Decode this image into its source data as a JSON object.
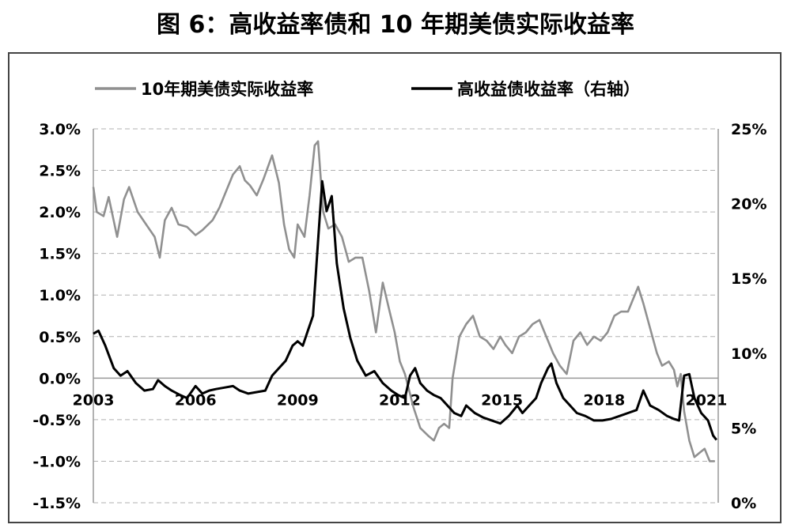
{
  "chart_data": {
    "type": "line",
    "title": "图 6：高收益率债和 10 年期美债实际收益率",
    "x_tick_labels": [
      "2003",
      "2006",
      "2009",
      "2012",
      "2015",
      "2018",
      "2021"
    ],
    "left_axis": {
      "ticks": [
        "3.0%",
        "2.5%",
        "2.0%",
        "1.5%",
        "1.0%",
        "0.5%",
        "0.0%",
        "-0.5%",
        "-1.0%",
        "-1.5%"
      ],
      "ylim": [
        -1.5,
        3.0
      ]
    },
    "right_axis": {
      "ticks": [
        "25%",
        "20%",
        "15%",
        "10%",
        "5%",
        "0%"
      ],
      "ylim": [
        0,
        25
      ]
    },
    "grid": "horizontal dashed",
    "legend_position": "top",
    "series": [
      {
        "name": "10年期美债实际收益率",
        "axis": "left",
        "color": "#909090",
        "points": [
          [
            2003.0,
            2.3
          ],
          [
            2003.1,
            2.0
          ],
          [
            2003.3,
            1.95
          ],
          [
            2003.45,
            2.18
          ],
          [
            2003.7,
            1.7
          ],
          [
            2003.9,
            2.15
          ],
          [
            2004.05,
            2.3
          ],
          [
            2004.3,
            2.0
          ],
          [
            2004.55,
            1.85
          ],
          [
            2004.8,
            1.7
          ],
          [
            2004.95,
            1.45
          ],
          [
            2005.1,
            1.9
          ],
          [
            2005.3,
            2.05
          ],
          [
            2005.5,
            1.85
          ],
          [
            2005.75,
            1.82
          ],
          [
            2006.0,
            1.72
          ],
          [
            2006.2,
            1.78
          ],
          [
            2006.5,
            1.9
          ],
          [
            2006.7,
            2.05
          ],
          [
            2006.9,
            2.25
          ],
          [
            2007.1,
            2.45
          ],
          [
            2007.3,
            2.55
          ],
          [
            2007.45,
            2.38
          ],
          [
            2007.6,
            2.32
          ],
          [
            2007.8,
            2.2
          ],
          [
            2008.0,
            2.4
          ],
          [
            2008.25,
            2.68
          ],
          [
            2008.45,
            2.35
          ],
          [
            2008.6,
            1.85
          ],
          [
            2008.75,
            1.55
          ],
          [
            2008.9,
            1.45
          ],
          [
            2009.0,
            1.85
          ],
          [
            2009.2,
            1.7
          ],
          [
            2009.35,
            2.2
          ],
          [
            2009.5,
            2.8
          ],
          [
            2009.6,
            2.85
          ],
          [
            2009.75,
            2.0
          ],
          [
            2009.9,
            1.8
          ],
          [
            2010.1,
            1.85
          ],
          [
            2010.3,
            1.7
          ],
          [
            2010.5,
            1.4
          ],
          [
            2010.7,
            1.45
          ],
          [
            2010.9,
            1.45
          ],
          [
            2011.1,
            1.05
          ],
          [
            2011.3,
            0.55
          ],
          [
            2011.5,
            1.15
          ],
          [
            2011.7,
            0.8
          ],
          [
            2011.85,
            0.55
          ],
          [
            2012.0,
            0.2
          ],
          [
            2012.15,
            0.05
          ],
          [
            2012.4,
            -0.35
          ],
          [
            2012.6,
            -0.6
          ],
          [
            2012.85,
            -0.7
          ],
          [
            2013.0,
            -0.75
          ],
          [
            2013.15,
            -0.6
          ],
          [
            2013.3,
            -0.55
          ],
          [
            2013.45,
            -0.6
          ],
          [
            2013.55,
            0.0
          ],
          [
            2013.75,
            0.5
          ],
          [
            2013.95,
            0.65
          ],
          [
            2014.15,
            0.75
          ],
          [
            2014.35,
            0.5
          ],
          [
            2014.55,
            0.45
          ],
          [
            2014.75,
            0.35
          ],
          [
            2014.95,
            0.5
          ],
          [
            2015.1,
            0.4
          ],
          [
            2015.3,
            0.3
          ],
          [
            2015.5,
            0.5
          ],
          [
            2015.7,
            0.55
          ],
          [
            2015.9,
            0.65
          ],
          [
            2016.1,
            0.7
          ],
          [
            2016.3,
            0.5
          ],
          [
            2016.5,
            0.3
          ],
          [
            2016.7,
            0.15
          ],
          [
            2016.9,
            0.05
          ],
          [
            2017.1,
            0.45
          ],
          [
            2017.3,
            0.55
          ],
          [
            2017.5,
            0.4
          ],
          [
            2017.7,
            0.5
          ],
          [
            2017.9,
            0.45
          ],
          [
            2018.1,
            0.55
          ],
          [
            2018.3,
            0.75
          ],
          [
            2018.5,
            0.8
          ],
          [
            2018.7,
            0.8
          ],
          [
            2018.9,
            1.0
          ],
          [
            2019.0,
            1.1
          ],
          [
            2019.15,
            0.9
          ],
          [
            2019.35,
            0.6
          ],
          [
            2019.55,
            0.3
          ],
          [
            2019.7,
            0.15
          ],
          [
            2019.9,
            0.2
          ],
          [
            2020.05,
            0.1
          ],
          [
            2020.15,
            -0.1
          ],
          [
            2020.25,
            0.05
          ],
          [
            2020.35,
            -0.4
          ],
          [
            2020.5,
            -0.75
          ],
          [
            2020.65,
            -0.95
          ],
          [
            2020.8,
            -0.9
          ],
          [
            2020.95,
            -0.85
          ],
          [
            2021.1,
            -1.0
          ],
          [
            2021.25,
            -1.0
          ]
        ]
      },
      {
        "name": "高收益债收益率（右轴）",
        "axis": "right",
        "color": "#000000",
        "points": [
          [
            2003.0,
            11.3
          ],
          [
            2003.15,
            11.5
          ],
          [
            2003.35,
            10.5
          ],
          [
            2003.6,
            9.0
          ],
          [
            2003.8,
            8.5
          ],
          [
            2004.0,
            8.8
          ],
          [
            2004.25,
            8.0
          ],
          [
            2004.5,
            7.5
          ],
          [
            2004.75,
            7.6
          ],
          [
            2004.9,
            8.2
          ],
          [
            2005.1,
            7.8
          ],
          [
            2005.3,
            7.5
          ],
          [
            2005.55,
            7.2
          ],
          [
            2005.75,
            7.0
          ],
          [
            2006.0,
            7.8
          ],
          [
            2006.2,
            7.3
          ],
          [
            2006.4,
            7.5
          ],
          [
            2006.6,
            7.6
          ],
          [
            2006.85,
            7.7
          ],
          [
            2007.1,
            7.8
          ],
          [
            2007.3,
            7.5
          ],
          [
            2007.55,
            7.3
          ],
          [
            2007.8,
            7.4
          ],
          [
            2008.05,
            7.5
          ],
          [
            2008.25,
            8.5
          ],
          [
            2008.45,
            9.0
          ],
          [
            2008.65,
            9.5
          ],
          [
            2008.85,
            10.5
          ],
          [
            2009.0,
            10.8
          ],
          [
            2009.15,
            10.5
          ],
          [
            2009.3,
            11.5
          ],
          [
            2009.45,
            12.5
          ],
          [
            2009.6,
            17.5
          ],
          [
            2009.72,
            21.5
          ],
          [
            2009.85,
            19.5
          ],
          [
            2010.0,
            20.5
          ],
          [
            2010.15,
            16.0
          ],
          [
            2010.35,
            13.0
          ],
          [
            2010.55,
            11.0
          ],
          [
            2010.75,
            9.5
          ],
          [
            2011.0,
            8.5
          ],
          [
            2011.25,
            8.8
          ],
          [
            2011.5,
            8.0
          ],
          [
            2011.75,
            7.5
          ],
          [
            2011.95,
            7.2
          ],
          [
            2012.15,
            7.0
          ],
          [
            2012.3,
            8.5
          ],
          [
            2012.45,
            9.0
          ],
          [
            2012.6,
            8.0
          ],
          [
            2012.8,
            7.5
          ],
          [
            2013.0,
            7.2
          ],
          [
            2013.2,
            7.0
          ],
          [
            2013.4,
            6.5
          ],
          [
            2013.6,
            6.0
          ],
          [
            2013.8,
            5.8
          ],
          [
            2013.95,
            6.5
          ],
          [
            2014.2,
            6.0
          ],
          [
            2014.45,
            5.7
          ],
          [
            2014.7,
            5.5
          ],
          [
            2014.95,
            5.3
          ],
          [
            2015.2,
            5.8
          ],
          [
            2015.45,
            6.5
          ],
          [
            2015.6,
            6.0
          ],
          [
            2015.8,
            6.5
          ],
          [
            2016.0,
            7.0
          ],
          [
            2016.15,
            8.0
          ],
          [
            2016.35,
            9.0
          ],
          [
            2016.45,
            9.3
          ],
          [
            2016.6,
            8.0
          ],
          [
            2016.8,
            7.0
          ],
          [
            2017.0,
            6.5
          ],
          [
            2017.2,
            6.0
          ],
          [
            2017.45,
            5.8
          ],
          [
            2017.7,
            5.5
          ],
          [
            2017.95,
            5.5
          ],
          [
            2018.2,
            5.6
          ],
          [
            2018.45,
            5.8
          ],
          [
            2018.7,
            6.0
          ],
          [
            2018.95,
            6.2
          ],
          [
            2019.15,
            7.5
          ],
          [
            2019.35,
            6.5
          ],
          [
            2019.6,
            6.2
          ],
          [
            2019.85,
            5.8
          ],
          [
            2020.05,
            5.6
          ],
          [
            2020.2,
            5.5
          ],
          [
            2020.35,
            8.5
          ],
          [
            2020.5,
            8.6
          ],
          [
            2020.65,
            7.0
          ],
          [
            2020.85,
            6.0
          ],
          [
            2021.05,
            5.5
          ],
          [
            2021.2,
            4.5
          ],
          [
            2021.3,
            4.2
          ]
        ]
      }
    ]
  }
}
